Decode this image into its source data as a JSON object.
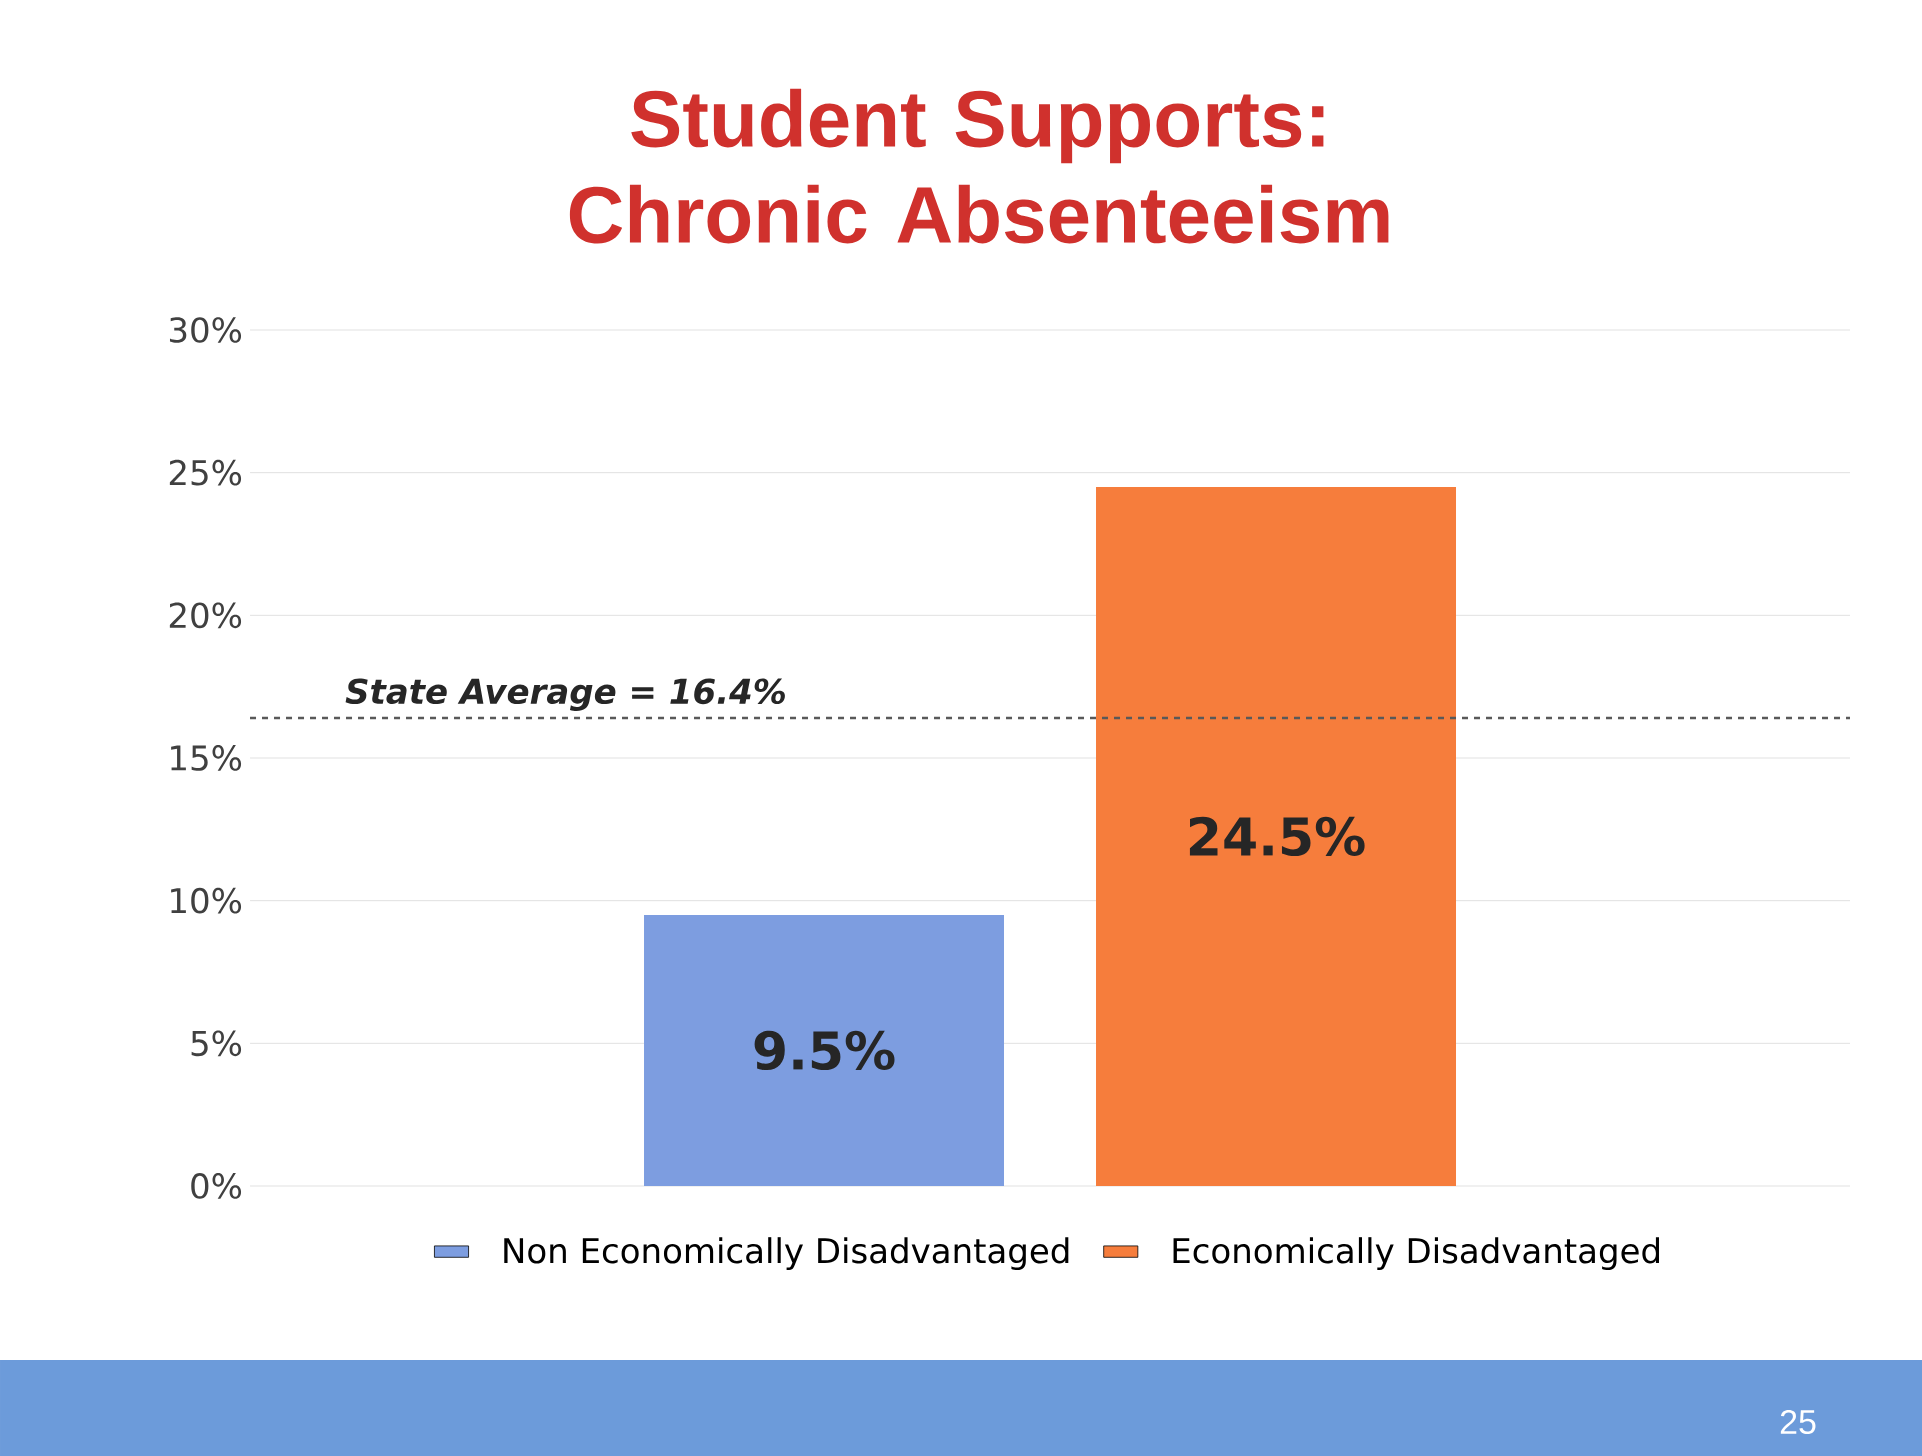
{
  "chart_data": {
    "type": "bar",
    "title": "Student Supports: Chronic Absenteeism",
    "categories": [
      null
    ],
    "series": [
      {
        "name": "Non Economically Disadvantaged",
        "color": "#7d9de0",
        "values": [
          9.5
        ],
        "value_labels": [
          "9.5%"
        ]
      },
      {
        "name": "Economically Disadvantaged",
        "color": "#f67d3c",
        "values": [
          24.5
        ],
        "value_labels": [
          "24.5%"
        ]
      }
    ],
    "ylim": [
      0,
      30
    ],
    "yticks": [
      {
        "value": 0,
        "label": "0%"
      },
      {
        "value": 5,
        "label": "5%"
      },
      {
        "value": 10,
        "label": "10%"
      },
      {
        "value": 15,
        "label": "15%"
      },
      {
        "value": 20,
        "label": "20%"
      },
      {
        "value": 25,
        "label": "25%"
      },
      {
        "value": 30,
        "label": "30%"
      }
    ],
    "grid": "y",
    "legend": "bottom",
    "ref_lines": [
      {
        "axis": "y",
        "value": 16.4,
        "label": "State Average = 16.4%",
        "line_style": "dashed"
      }
    ],
    "annotations": [
      "25"
    ]
  }
}
